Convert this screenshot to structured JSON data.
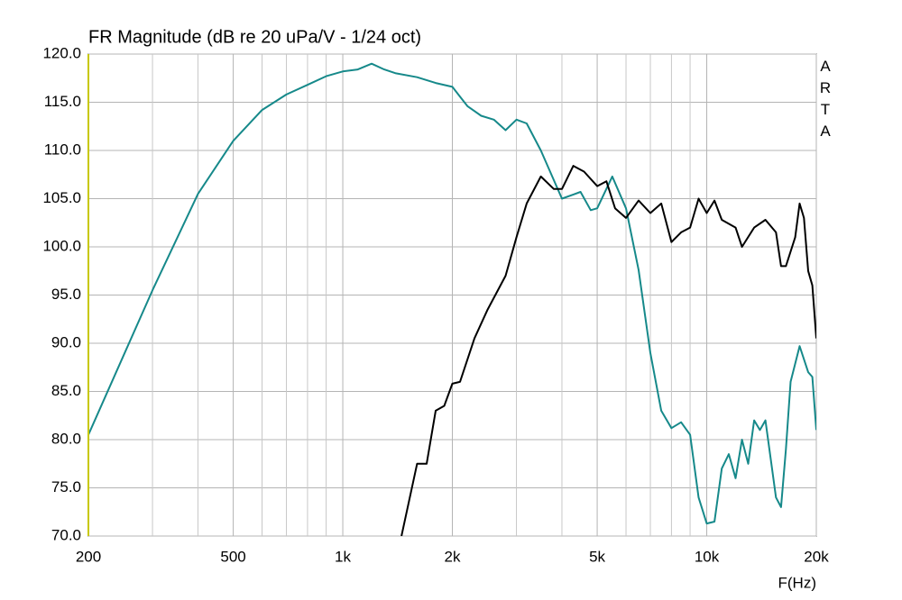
{
  "chart_data": {
    "type": "line",
    "title": "FR Magnitude (dB re 20 uPa/V - 1/24 oct)",
    "x_label": "F(Hz)",
    "annotation": "ARTA",
    "x_scale": "log",
    "grid": true,
    "xlim": [
      200,
      20000
    ],
    "ylim": [
      70,
      120
    ],
    "xticks": [
      200,
      500,
      {
        "value": 1000,
        "label": "1k"
      },
      {
        "value": 2000,
        "label": "2k"
      },
      {
        "value": 5000,
        "label": "5k"
      },
      {
        "value": 10000,
        "label": "10k"
      },
      {
        "value": 20000,
        "label": "20k"
      }
    ],
    "xminor_ticks": [
      300,
      400,
      600,
      700,
      800,
      900,
      3000,
      4000,
      6000,
      7000,
      8000,
      9000
    ],
    "yticks": [
      {
        "value": 70,
        "label": "70.0"
      },
      {
        "value": 75,
        "label": "75.0"
      },
      {
        "value": 80,
        "label": "80.0"
      },
      {
        "value": 85,
        "label": "85.0"
      },
      {
        "value": 90,
        "label": "90.0"
      },
      {
        "value": 95,
        "label": "95.0"
      },
      {
        "value": 100,
        "label": "100.0"
      },
      {
        "value": 105,
        "label": "105.0"
      },
      {
        "value": 110,
        "label": "110.0"
      },
      {
        "value": 115,
        "label": "115.0"
      },
      {
        "value": 120,
        "label": "120.0"
      }
    ],
    "series": [
      {
        "color": "#16898a",
        "x": [
          200,
          300,
          400,
          500,
          600,
          700,
          800,
          900,
          1000,
          1100,
          1200,
          1300,
          1400,
          1600,
          1800,
          2000,
          2200,
          2400,
          2600,
          2800,
          3000,
          3200,
          3500,
          4000,
          4500,
          4800,
          5000,
          5500,
          6000,
          6500,
          7000,
          7500,
          8000,
          8500,
          9000,
          9500,
          10000,
          10500,
          11000,
          11500,
          12000,
          12500,
          13000,
          13500,
          14000,
          14500,
          15500,
          16000,
          16500,
          17000,
          18000,
          19000,
          19500,
          20000
        ],
        "values": [
          80.5,
          95.5,
          105.5,
          111,
          114.2,
          115.8,
          116.8,
          117.7,
          118.2,
          118.4,
          119,
          118.4,
          118,
          117.6,
          117,
          116.6,
          114.6,
          113.6,
          113.2,
          112.1,
          113.2,
          112.8,
          110,
          105,
          105.7,
          103.8,
          104,
          107.3,
          104,
          97.6,
          89,
          83,
          81.2,
          81.8,
          80.5,
          74,
          71.3,
          71.5,
          77,
          78.5,
          76,
          80,
          77.5,
          82,
          81,
          82,
          74,
          73,
          79,
          86,
          89.7,
          87,
          86.5,
          81
        ]
      },
      {
        "color": "#000000",
        "x": [
          1450,
          1600,
          1700,
          1800,
          1900,
          2000,
          2100,
          2300,
          2500,
          2800,
          3000,
          3200,
          3500,
          3800,
          4000,
          4300,
          4600,
          5000,
          5300,
          5600,
          6000,
          6500,
          7000,
          7500,
          8000,
          8500,
          9000,
          9500,
          10000,
          10500,
          11000,
          12000,
          12500,
          13500,
          14500,
          15500,
          16000,
          16500,
          17500,
          18000,
          18500,
          19000,
          19500,
          20000
        ],
        "values": [
          70,
          77.5,
          77.5,
          83,
          83.5,
          85.8,
          86,
          90.5,
          93.5,
          97,
          101,
          104.5,
          107.3,
          106,
          106,
          108.4,
          107.8,
          106.3,
          106.8,
          104,
          103,
          104.8,
          103.5,
          104.5,
          100.5,
          101.5,
          102,
          105,
          103.5,
          104.8,
          102.8,
          102,
          100,
          102,
          102.8,
          101.5,
          98,
          98,
          101,
          104.5,
          103,
          97.5,
          96,
          90.5
        ]
      }
    ]
  }
}
